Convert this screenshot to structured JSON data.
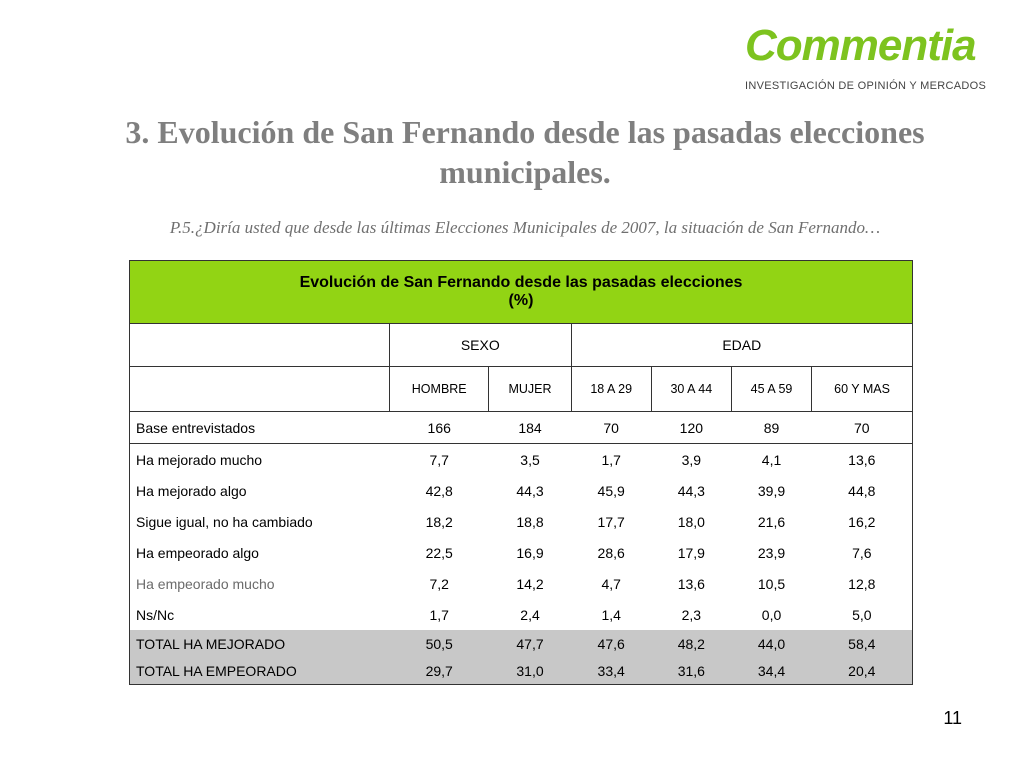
{
  "logo": {
    "name": "Commentia",
    "tagline": "INVESTIGACIÓN DE OPINIÓN Y MERCADOS"
  },
  "title": "3.  Evolución de San Fernando desde las pasadas elecciones municipales.",
  "question": "P.5.¿Diría usted que desde las últimas Elecciones Municipales de 2007, la situación de San Fernando…",
  "table": {
    "header_line1": "Evolución de San Fernando desde las pasadas elecciones",
    "header_line2": "(%)",
    "group_sexo": "SEXO",
    "group_edad": "EDAD",
    "columns": [
      "HOMBRE",
      "MUJER",
      "18 A 29",
      "30 A 44",
      "45 A 59",
      "60 Y MAS"
    ],
    "base": {
      "label": "Base entrevistados",
      "values": [
        "166",
        "184",
        "70",
        "120",
        "89",
        "70"
      ]
    },
    "rows": [
      {
        "label": "Ha mejorado mucho",
        "values": [
          "7,7",
          "3,5",
          "1,7",
          "3,9",
          "4,1",
          "13,6"
        ]
      },
      {
        "label": "Ha mejorado algo",
        "values": [
          "42,8",
          "44,3",
          "45,9",
          "44,3",
          "39,9",
          "44,8"
        ]
      },
      {
        "label": "Sigue igual, no ha cambiado",
        "values": [
          "18,2",
          "18,8",
          "17,7",
          "18,0",
          "21,6",
          "16,2"
        ]
      },
      {
        "label": "Ha empeorado algo",
        "values": [
          "22,5",
          "16,9",
          "28,6",
          "17,9",
          "23,9",
          "7,6"
        ]
      },
      {
        "label": "Ha empeorado mucho",
        "values": [
          "7,2",
          "14,2",
          "4,7",
          "13,6",
          "10,5",
          "12,8"
        ]
      },
      {
        "label": "Ns/Nc",
        "values": [
          "1,7",
          "2,4",
          "1,4",
          "2,3",
          "0,0",
          "5,0"
        ]
      }
    ],
    "totals": [
      {
        "label": "TOTAL HA MEJORADO",
        "values": [
          "50,5",
          "47,7",
          "47,6",
          "48,2",
          "44,0",
          "58,4"
        ]
      },
      {
        "label": "TOTAL HA EMPEORADO",
        "values": [
          "29,7",
          "31,0",
          "33,4",
          "31,6",
          "34,4",
          "20,4"
        ]
      }
    ]
  },
  "page_number": "11",
  "colors": {
    "accent_green": "#92d414",
    "logo_green": "#7dc31f",
    "total_gray": "#c8c8c8",
    "title_gray": "#7f7f7f"
  }
}
